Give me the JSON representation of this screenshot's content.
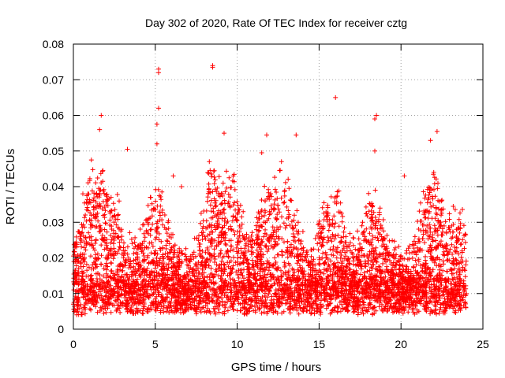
{
  "chart_data": {
    "type": "scatter",
    "title": "Day 302 of 2020, Rate Of TEC Index for receiver cztg",
    "xlabel": "GPS time / hours",
    "ylabel": "ROTI / TECUs",
    "xlim": [
      0,
      25
    ],
    "ylim": [
      0,
      0.08
    ],
    "x_ticks": [
      "0",
      "5",
      "10",
      "15",
      "20",
      "25"
    ],
    "y_ticks": [
      "0",
      "0.01",
      "0.02",
      "0.03",
      "0.04",
      "0.05",
      "0.06",
      "0.07",
      "0.08"
    ],
    "grid": true,
    "marker": "plus",
    "color": "#ff0000",
    "notable_points": [
      {
        "x": 8.5,
        "y": 0.074
      },
      {
        "x": 8.5,
        "y": 0.0735
      },
      {
        "x": 5.2,
        "y": 0.073
      },
      {
        "x": 5.2,
        "y": 0.072
      },
      {
        "x": 16.0,
        "y": 0.065
      },
      {
        "x": 5.2,
        "y": 0.062
      },
      {
        "x": 1.7,
        "y": 0.06
      },
      {
        "x": 18.5,
        "y": 0.06
      },
      {
        "x": 18.4,
        "y": 0.059
      },
      {
        "x": 5.1,
        "y": 0.0575
      },
      {
        "x": 1.6,
        "y": 0.056
      },
      {
        "x": 22.2,
        "y": 0.0555
      },
      {
        "x": 9.2,
        "y": 0.055
      },
      {
        "x": 11.8,
        "y": 0.0545
      },
      {
        "x": 13.6,
        "y": 0.0545
      },
      {
        "x": 21.8,
        "y": 0.053
      },
      {
        "x": 5.1,
        "y": 0.052
      },
      {
        "x": 3.3,
        "y": 0.0505
      },
      {
        "x": 18.4,
        "y": 0.05
      },
      {
        "x": 11.5,
        "y": 0.0495
      },
      {
        "x": 8.3,
        "y": 0.047
      },
      {
        "x": 1.1,
        "y": 0.0475
      },
      {
        "x": 12.7,
        "y": 0.047
      },
      {
        "x": 1.8,
        "y": 0.0445
      },
      {
        "x": 22.0,
        "y": 0.044
      },
      {
        "x": 20.2,
        "y": 0.043
      },
      {
        "x": 6.1,
        "y": 0.043
      },
      {
        "x": 6.6,
        "y": 0.04
      },
      {
        "x": 7.8,
        "y": 0.0325
      },
      {
        "x": 7.4,
        "y": 0.0255
      }
    ],
    "dense_band": {
      "y_min": 0.004,
      "y_max": 0.016,
      "x_range": [
        0,
        24
      ]
    }
  }
}
